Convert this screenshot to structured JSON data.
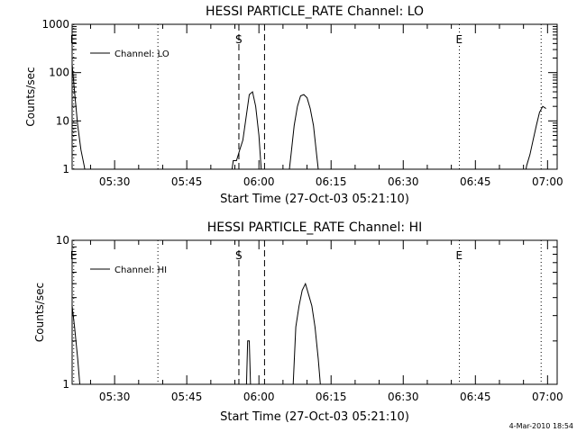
{
  "footer_timestamp": "4-Mar-2010 18:54",
  "chart_data": [
    {
      "type": "line",
      "title": "HESSI PARTICLE_RATE Channel: LO",
      "xlabel": "Start Time (27-Oct-03 05:21:10)",
      "ylabel": "Counts/sec",
      "yscale": "log",
      "xlim": [
        "05:21:10",
        "07:02:00"
      ],
      "ylim": [
        1,
        1000
      ],
      "x_ticks": [
        "05:30",
        "05:45",
        "06:00",
        "06:15",
        "06:30",
        "06:45",
        "07:00"
      ],
      "y_ticks": [
        "1",
        "10",
        "100",
        "1000"
      ],
      "legend": "top-left",
      "series": [
        {
          "name": "Channel: LO",
          "x": [
            "05:21:10",
            "05:21:40",
            "05:22:20",
            "05:23:00",
            "05:23:40",
            "05:24:20",
            "05:54:00",
            "05:54:40",
            "05:55:20",
            "05:56:00",
            "05:56:40",
            "05:57:20",
            "05:58:00",
            "05:58:40",
            "05:59:20",
            "06:00:00",
            "06:00:40",
            "06:06:00",
            "06:06:40",
            "06:07:20",
            "06:08:00",
            "06:08:40",
            "06:09:20",
            "06:10:00",
            "06:10:40",
            "06:11:20",
            "06:12:00",
            "06:12:40",
            "06:55:00",
            "06:55:40",
            "06:56:20",
            "06:57:00",
            "06:57:40",
            "06:58:20",
            "06:59:00",
            "06:59:40"
          ],
          "y": [
            150,
            40,
            8,
            2.5,
            1.2,
            0.5,
            0.5,
            1.5,
            1.5,
            2.5,
            4,
            12,
            35,
            40,
            20,
            5,
            0.5,
            0.5,
            2,
            8,
            20,
            33,
            35,
            30,
            18,
            8,
            2,
            0.5,
            0.5,
            1.2,
            2,
            4,
            8,
            15,
            20,
            18
          ]
        }
      ],
      "annotations": [
        {
          "label": "E",
          "time": "05:21:30",
          "style": "dotted"
        },
        {
          "label": "",
          "time": "05:39:00",
          "style": "dotted"
        },
        {
          "label": "S",
          "time": "05:55:50",
          "style": "dashed"
        },
        {
          "label": "",
          "time": "06:01:10",
          "style": "dashed"
        },
        {
          "label": "E",
          "time": "06:41:40",
          "style": "dotted"
        },
        {
          "label": "",
          "time": "06:58:40",
          "style": "dotted"
        }
      ]
    },
    {
      "type": "line",
      "title": "HESSI PARTICLE_RATE Channel: HI",
      "xlabel": "Start Time (27-Oct-03 05:21:10)",
      "ylabel": "Counts/sec",
      "yscale": "log",
      "xlim": [
        "05:21:10",
        "07:02:00"
      ],
      "ylim": [
        1,
        10
      ],
      "x_ticks": [
        "05:30",
        "05:45",
        "06:00",
        "06:15",
        "06:30",
        "06:45",
        "07:00"
      ],
      "y_ticks": [
        "1",
        "10"
      ],
      "legend": "top-left",
      "series": [
        {
          "name": "Channel: HI",
          "x": [
            "05:21:10",
            "05:21:40",
            "05:22:20",
            "05:23:00",
            "05:57:20",
            "05:57:40",
            "05:58:00",
            "05:58:20",
            "06:07:00",
            "06:07:40",
            "06:08:20",
            "06:09:00",
            "06:09:40",
            "06:10:20",
            "06:11:00",
            "06:11:40",
            "06:12:20",
            "06:13:00"
          ],
          "y": [
            3.5,
            2.5,
            1.5,
            0.8,
            0.8,
            2,
            2,
            0.8,
            0.8,
            2.5,
            3.5,
            4.5,
            5,
            4.2,
            3.5,
            2.5,
            1.5,
            0.8
          ]
        }
      ],
      "annotations": [
        {
          "label": "E",
          "time": "05:21:30",
          "style": "dotted"
        },
        {
          "label": "",
          "time": "05:39:00",
          "style": "dotted"
        },
        {
          "label": "S",
          "time": "05:55:50",
          "style": "dashed"
        },
        {
          "label": "",
          "time": "06:01:10",
          "style": "dashed"
        },
        {
          "label": "E",
          "time": "06:41:40",
          "style": "dotted"
        },
        {
          "label": "",
          "time": "06:58:40",
          "style": "dotted"
        }
      ]
    }
  ]
}
